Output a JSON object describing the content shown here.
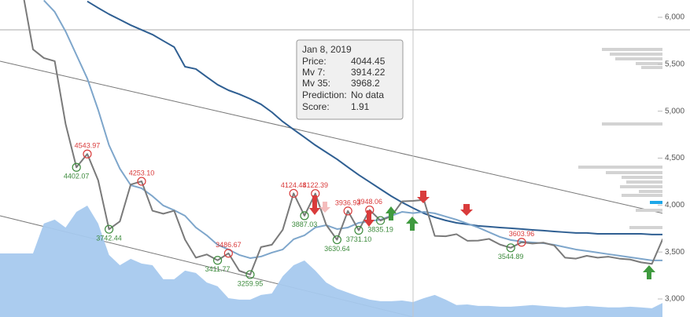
{
  "chart_data": {
    "type": "line",
    "x": [
      -1,
      0,
      1,
      2,
      3,
      4,
      5,
      6,
      7,
      8,
      9,
      10,
      11,
      12,
      13,
      14,
      15,
      16,
      17,
      18,
      19,
      20,
      21,
      22,
      23,
      24,
      25,
      26,
      27,
      28,
      29,
      30,
      31,
      32,
      33,
      34,
      35,
      36,
      37,
      38,
      39,
      40,
      41,
      42,
      43,
      44,
      45,
      46,
      47,
      48,
      49,
      50,
      51,
      52,
      53,
      54,
      55,
      56,
      57,
      58
    ],
    "xlim": [
      -3.04,
      58
    ],
    "ylim": [
      2808,
      6184
    ],
    "yticks": [
      {
        "value": 3000,
        "label": "3,000"
      },
      {
        "value": 3500,
        "label": "3,500"
      },
      {
        "value": 4000,
        "label": "4,000"
      },
      {
        "value": 4500,
        "label": "4,500"
      },
      {
        "value": 5000,
        "label": "5,000"
      },
      {
        "value": 5500,
        "label": "5,500"
      },
      {
        "value": 6000,
        "label": "6,000"
      }
    ],
    "series": [
      {
        "type": "area",
        "color": "#a6c9ee",
        "values": [
          3485,
          3485,
          3803,
          3845,
          3761,
          3928,
          3995,
          3803,
          3469,
          3360,
          3427,
          3377,
          3360,
          3210,
          3210,
          3302,
          3277,
          3176,
          3135,
          3009,
          2993,
          2993,
          3043,
          3059,
          3243,
          3360,
          3410,
          3302,
          3176,
          3110,
          3068,
          3026,
          2993,
          2976,
          2976,
          2984,
          2967,
          3009,
          3043,
          2993,
          2935,
          2942,
          2926,
          2926,
          2918,
          2918,
          2926,
          2935,
          2926,
          2918,
          2910,
          2918,
          2926,
          2918,
          2910,
          2910,
          2918,
          2910,
          2901,
          2959
        ]
      },
      {
        "type": "line",
        "color": "#2f5f92",
        "values": [
          null,
          null,
          null,
          null,
          null,
          null,
          6170,
          6100,
          6033,
          5975,
          5916,
          5866,
          5816,
          5749,
          5683,
          5474,
          5449,
          5365,
          5282,
          5223,
          5181,
          5131,
          5073,
          4989,
          4889,
          4805,
          4722,
          4638,
          4563,
          4488,
          4404,
          4321,
          4246,
          4170,
          4095,
          4028,
          3968.2,
          3912,
          3870,
          3837,
          3811,
          3795,
          3778,
          3770,
          3761,
          3753,
          3745,
          3736,
          3728,
          3719,
          3711,
          3703,
          3703,
          3694,
          3694,
          3694,
          3694,
          3694,
          3686,
          3686
        ]
      },
      {
        "type": "line",
        "color": "#7ea6cb",
        "values": [
          null,
          null,
          6180,
          6058,
          5850,
          5599,
          5348,
          5014,
          4638,
          4388,
          4212,
          4179,
          4095,
          3995,
          3945,
          3886,
          3761,
          3678,
          3577,
          3527,
          3469,
          3435,
          3452,
          3494,
          3527,
          3636,
          3678,
          3761,
          3786,
          3744,
          3761,
          3811,
          3828,
          3845,
          3886,
          3928,
          3914.22,
          3928,
          3912,
          3878,
          3845,
          3803,
          3761,
          3711,
          3661,
          3628,
          3611,
          3602,
          3594,
          3577,
          3552,
          3527,
          3511,
          3494,
          3477,
          3461,
          3444,
          3427,
          3411,
          3411
        ]
      },
      {
        "type": "line",
        "color": "#7a7a7a",
        "values": [
          6300,
          5658,
          5566,
          5533,
          4865,
          4402.07,
          4543.97,
          4264,
          3742.44,
          3826,
          4219,
          4253.1,
          3940,
          3908,
          3940,
          3632,
          3440,
          3474,
          3411.77,
          3486.67,
          3300,
          3259.95,
          3553,
          3578,
          3737,
          4124.48,
          3887.03,
          4122.39,
          3790,
          3630.64,
          3936.93,
          3731.1,
          3948.06,
          3835.19,
          3880,
          4040,
          4044.45,
          4054.84,
          3672,
          3668,
          3690,
          3620,
          3622,
          3640,
          3580,
          3544.89,
          3603.96,
          3590,
          3600,
          3570,
          3440,
          3430,
          3460,
          3440,
          3450,
          3430,
          3420,
          3390,
          3374,
          3640
        ],
        "value_labels": [
          null,
          null,
          null,
          null,
          null,
          "4402.07",
          "4543.97",
          null,
          "3742.44",
          null,
          null,
          "4253.10",
          null,
          null,
          null,
          null,
          null,
          null,
          "3411.77",
          "3486.67",
          null,
          "3259.95",
          null,
          null,
          null,
          "4124.48",
          "3887.03",
          "4122.39",
          null,
          "3630.64",
          "3936.93",
          "3731.10",
          "3948.06",
          "3835.19",
          null,
          null,
          null,
          null,
          null,
          null,
          null,
          null,
          null,
          null,
          null,
          "3544.89",
          "3603.96",
          null,
          null,
          null,
          null,
          null,
          null,
          null,
          null,
          null,
          null,
          null,
          null,
          null
        ],
        "high_color": "#d93b3b",
        "low_color": "#3d8b3d"
      }
    ],
    "trendlines": [
      {
        "x": [
          -3.04,
          58
        ],
        "values": [
          5532,
          3912
        ]
      },
      {
        "x": [
          -3.04,
          35
        ],
        "values": [
          3886,
          2808
        ]
      }
    ],
    "tooltip": {
      "title": "Jan 8, 2019",
      "rows": [
        {
          "label": "Price:"
        },
        {
          "label": "Mv 7:"
        },
        {
          "label": "Mv 35:"
        },
        {
          "label": "Prediction:",
          "value": "No data"
        },
        {
          "label": "Score:",
          "value": 1.91
        }
      ]
    }
  }
}
